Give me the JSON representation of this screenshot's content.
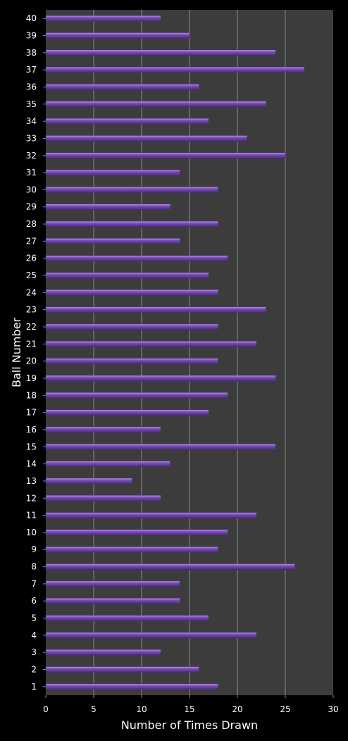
{
  "chart_data": {
    "type": "bar",
    "orientation": "horizontal",
    "xlabel": "Number of Times Drawn",
    "ylabel": "Ball Number",
    "xlim": [
      0,
      30
    ],
    "x_ticks": [
      "0",
      "5",
      "10",
      "15",
      "20",
      "25",
      "30"
    ],
    "grid": true,
    "legend": "none",
    "categories": [
      "1",
      "2",
      "3",
      "4",
      "5",
      "6",
      "7",
      "8",
      "9",
      "10",
      "11",
      "12",
      "13",
      "14",
      "15",
      "16",
      "17",
      "18",
      "19",
      "20",
      "21",
      "22",
      "23",
      "24",
      "25",
      "26",
      "27",
      "28",
      "29",
      "30",
      "31",
      "32",
      "33",
      "34",
      "35",
      "36",
      "37",
      "38",
      "39",
      "40"
    ],
    "values": [
      18,
      16,
      12,
      22,
      17,
      14,
      14,
      26,
      18,
      19,
      22,
      12,
      9,
      13,
      24,
      12,
      17,
      19,
      24,
      18,
      22,
      18,
      23,
      18,
      17,
      19,
      14,
      18,
      13,
      18,
      14,
      25,
      21,
      17,
      23,
      16,
      27,
      24,
      15,
      12
    ],
    "colors": {
      "background": "#000000",
      "plot_area": "#3c3c3c",
      "gridline": "#8c8c8c",
      "bar": "#7b4fb8",
      "bar_highlight": "#b79ae6",
      "bar_shadow": "#4a2a78",
      "text": "#ffffff"
    }
  }
}
